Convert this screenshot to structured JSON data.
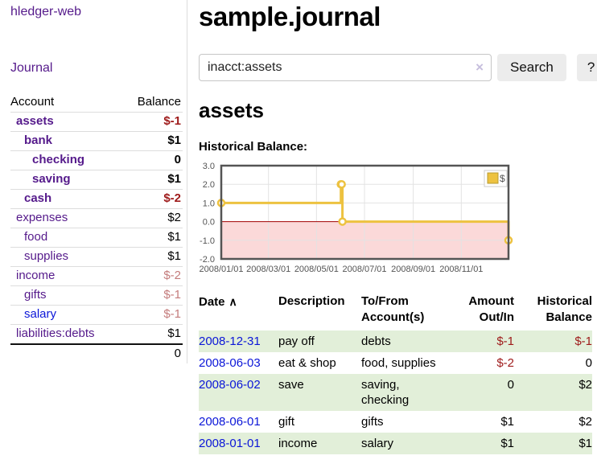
{
  "app": {
    "brand": "hledger-web",
    "nav_journal": "Journal"
  },
  "sidebar": {
    "header": {
      "account": "Account",
      "balance": "Balance"
    },
    "rows": [
      {
        "name": "assets",
        "balance": "$-1",
        "depth": 0,
        "bold": true,
        "bal_class": "neg-strong",
        "link": "visited"
      },
      {
        "name": "bank",
        "balance": "$1",
        "depth": 1,
        "bold": true,
        "bal_class": "",
        "link": "visited"
      },
      {
        "name": "checking",
        "balance": "0",
        "depth": 2,
        "bold": true,
        "bal_class": "",
        "link": "visited"
      },
      {
        "name": "saving",
        "balance": "$1",
        "depth": 2,
        "bold": true,
        "bal_class": "",
        "link": "visited"
      },
      {
        "name": "cash",
        "balance": "$-2",
        "depth": 1,
        "bold": true,
        "bal_class": "neg-strong",
        "link": "visited"
      },
      {
        "name": "expenses",
        "balance": "$2",
        "depth": 0,
        "bold": false,
        "bal_class": "",
        "link": "visited"
      },
      {
        "name": "food",
        "balance": "$1",
        "depth": 1,
        "bold": false,
        "bal_class": "",
        "link": "visited"
      },
      {
        "name": "supplies",
        "balance": "$1",
        "depth": 1,
        "bold": false,
        "bal_class": "",
        "link": "visited"
      },
      {
        "name": "income",
        "balance": "$-2",
        "depth": 0,
        "bold": false,
        "bal_class": "neg-soft",
        "link": "visited"
      },
      {
        "name": "gifts",
        "balance": "$-1",
        "depth": 1,
        "bold": false,
        "bal_class": "neg-soft",
        "link": "visited"
      },
      {
        "name": "salary",
        "balance": "$-1",
        "depth": 1,
        "bold": false,
        "bal_class": "neg-soft",
        "link": "new"
      },
      {
        "name": "liabilities:debts",
        "balance": "$1",
        "depth": 0,
        "bold": false,
        "bal_class": "",
        "link": "visited"
      }
    ],
    "total": "0"
  },
  "main": {
    "title": "sample.journal",
    "search": {
      "value": "inacct:assets",
      "clear_icon": "×",
      "button": "Search",
      "help_button": "?"
    },
    "account_title": "assets",
    "chart_label": "Historical Balance:"
  },
  "chart_data": {
    "type": "line",
    "step": true,
    "title": "Historical Balance",
    "series": [
      {
        "name": "$",
        "color": "#edc240",
        "points": [
          [
            "2008-01-01",
            1
          ],
          [
            "2008-06-01",
            2
          ],
          [
            "2008-06-02",
            2
          ],
          [
            "2008-06-03",
            0
          ],
          [
            "2008-12-31",
            -1
          ]
        ]
      }
    ],
    "x_ticks": [
      "2008/01/01",
      "2008/03/01",
      "2008/05/01",
      "2008/07/01",
      "2008/09/01",
      "2008/11/01"
    ],
    "y_ticks": [
      3.0,
      2.0,
      1.0,
      0.0,
      -1.0,
      -2.0
    ],
    "xlim": [
      "2008-01-01",
      "2008-12-31"
    ],
    "ylim": [
      -2,
      3
    ],
    "legend": {
      "label": "$",
      "position": "top-right"
    },
    "grid": true,
    "colors": {
      "line": "#edc240",
      "marker_fill": "#ffffff",
      "negative_region": "#fbd9d9",
      "zero_line": "#a00000",
      "gridline": "#e3e3e3",
      "border": "#545454",
      "tick_text": "#545454",
      "legend_border": "#cccccc"
    }
  },
  "register": {
    "columns": [
      "Date",
      "Description",
      "To/From Account(s)",
      "Amount Out/In",
      "Historical Balance"
    ],
    "sort_indicator": "∧",
    "rows": [
      {
        "date": "2008-12-31",
        "description": "pay off",
        "accounts": "debts",
        "amount": "$-1",
        "balance": "$-1"
      },
      {
        "date": "2008-06-03",
        "description": "eat & shop",
        "accounts": "food, supplies",
        "amount": "$-2",
        "balance": "0"
      },
      {
        "date": "2008-06-02",
        "description": "save",
        "accounts": "saving, checking",
        "amount": "0",
        "balance": "$2"
      },
      {
        "date": "2008-06-01",
        "description": "gift",
        "accounts": "gifts",
        "amount": "$1",
        "balance": "$2"
      },
      {
        "date": "2008-01-01",
        "description": "income",
        "accounts": "salary",
        "amount": "$1",
        "balance": "$1"
      }
    ]
  }
}
